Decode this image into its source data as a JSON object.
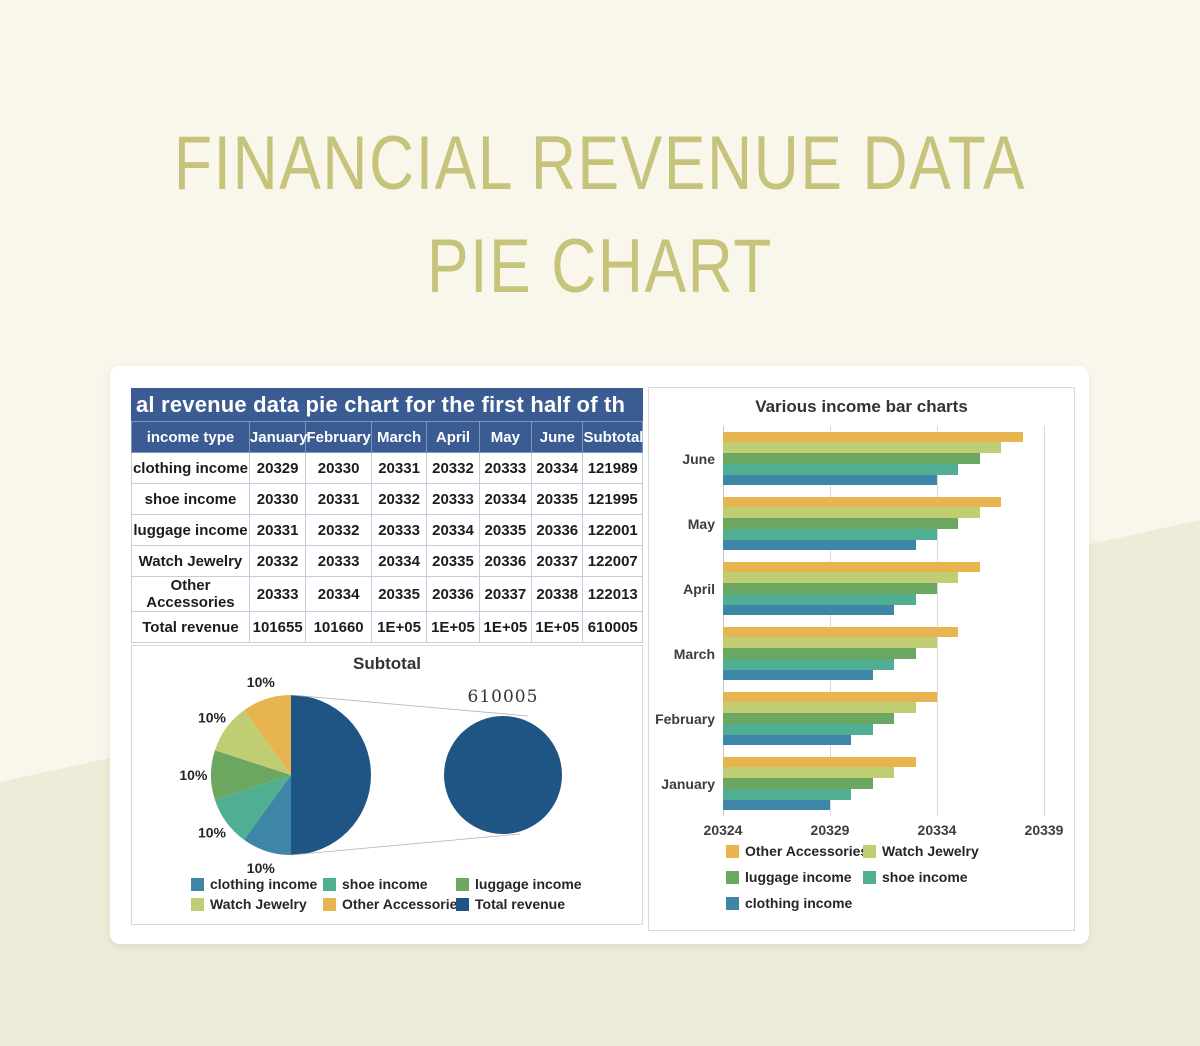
{
  "page": {
    "title_line1": "FINANCIAL REVENUE DATA",
    "title_line2": "PIE CHART",
    "title_color": "#c6c37b"
  },
  "table": {
    "title": "al revenue data pie chart for the first half of th",
    "header_bg": "#3a5c92",
    "columns": [
      "income type",
      "January",
      "February",
      "March",
      "April",
      "May",
      "June",
      "Subtotal"
    ],
    "rows": [
      [
        "clothing income",
        "20329",
        "20330",
        "20331",
        "20332",
        "20333",
        "20334",
        "121989"
      ],
      [
        "shoe income",
        "20330",
        "20331",
        "20332",
        "20333",
        "20334",
        "20335",
        "121995"
      ],
      [
        "luggage income",
        "20331",
        "20332",
        "20333",
        "20334",
        "20335",
        "20336",
        "122001"
      ],
      [
        "Watch Jewelry",
        "20332",
        "20333",
        "20334",
        "20335",
        "20336",
        "20337",
        "122007"
      ],
      [
        "Other Accessories",
        "20333",
        "20334",
        "20335",
        "20336",
        "20337",
        "20338",
        "122013"
      ],
      [
        "Total revenue",
        "101655",
        "101660",
        "1E+05",
        "1E+05",
        "1E+05",
        "1E+05",
        "610005"
      ]
    ]
  },
  "chart_data": [
    {
      "type": "pie",
      "variant": "pie-of-pie",
      "title": "Subtotal",
      "slices": [
        {
          "label": "Total revenue",
          "value": 610005,
          "pct": 50,
          "color": "#1f5585",
          "data_label": ""
        },
        {
          "label": "clothing income",
          "value": 121989,
          "pct": 10,
          "color": "#3e86a8",
          "data_label": "10%"
        },
        {
          "label": "shoe income",
          "value": 121995,
          "pct": 10,
          "color": "#50ae92",
          "data_label": "10%"
        },
        {
          "label": "luggage income",
          "value": 122001,
          "pct": 10,
          "color": "#6ba761",
          "data_label": "10%"
        },
        {
          "label": "Watch Jewelry",
          "value": 122007,
          "pct": 10,
          "color": "#c1cd72",
          "data_label": "10%"
        },
        {
          "label": "Other Accessories",
          "value": 122013,
          "pct": 10,
          "color": "#e7b44f",
          "data_label": "10%"
        }
      ],
      "secondary_pie": {
        "slice": "Total revenue",
        "value_label": "610005",
        "color": "#1f5585"
      },
      "legend": [
        "clothing income",
        "shoe income",
        "luggage income",
        "Watch Jewelry",
        "Other Accessories",
        "Total revenue"
      ],
      "legend_position": "bottom"
    },
    {
      "type": "bar",
      "orientation": "horizontal",
      "title": "Various income bar charts",
      "categories": [
        "June",
        "May",
        "April",
        "March",
        "February",
        "January"
      ],
      "series": [
        {
          "name": "Other Accessories",
          "color": "#e7b44f",
          "values": [
            20338,
            20337,
            20336,
            20335,
            20334,
            20333
          ]
        },
        {
          "name": "Watch Jewelry",
          "color": "#c1cd72",
          "values": [
            20337,
            20336,
            20335,
            20334,
            20333,
            20332
          ]
        },
        {
          "name": "luggage income",
          "color": "#6ba761",
          "values": [
            20336,
            20335,
            20334,
            20333,
            20332,
            20331
          ]
        },
        {
          "name": "shoe income",
          "color": "#50ae92",
          "values": [
            20335,
            20334,
            20333,
            20332,
            20331,
            20330
          ]
        },
        {
          "name": "clothing income",
          "color": "#3e86a8",
          "values": [
            20334,
            20333,
            20332,
            20331,
            20330,
            20329
          ]
        }
      ],
      "xlim": [
        20324,
        20339
      ],
      "xticks": [
        "20324",
        "20329",
        "20334",
        "20339"
      ],
      "grid": true,
      "legend": [
        "Other Accessories",
        "Watch Jewelry",
        "luggage income",
        "shoe income",
        "clothing income"
      ],
      "legend_position": "bottom"
    }
  ]
}
